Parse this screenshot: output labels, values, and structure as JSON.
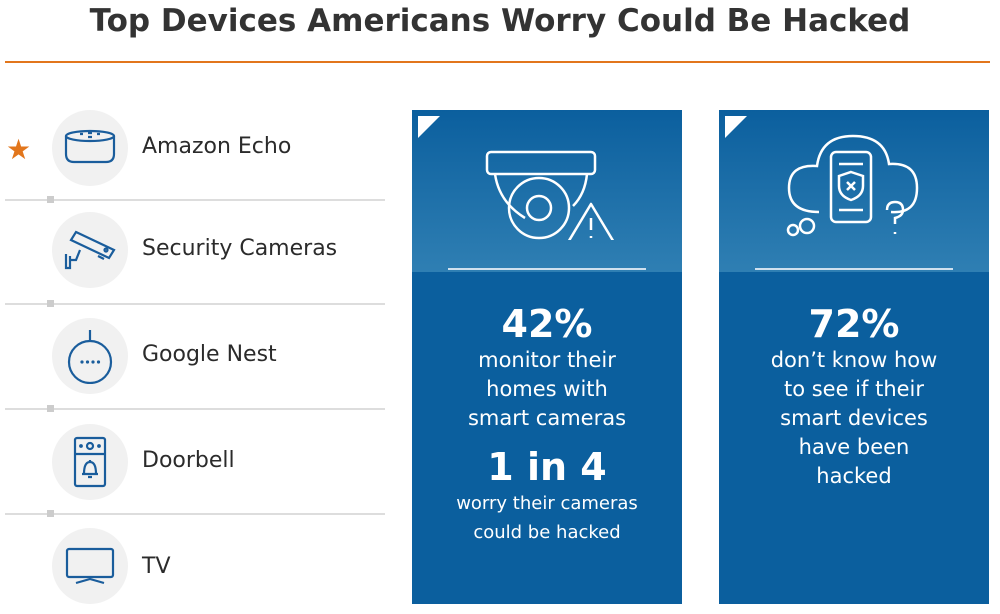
{
  "title": "Top Devices Americans Worry Could Be Hacked",
  "colors": {
    "accent": "#e2761c",
    "card": "#0b5f9e",
    "icon": "#1a5d9c"
  },
  "devices": [
    {
      "label": "Amazon Echo",
      "icon": "echo-speaker-icon",
      "starred": true
    },
    {
      "label": "Security Cameras",
      "icon": "security-camera-icon"
    },
    {
      "label": "Google Nest",
      "icon": "google-nest-icon"
    },
    {
      "label": "Doorbell",
      "icon": "doorbell-icon"
    },
    {
      "label": "TV",
      "icon": "tv-icon"
    }
  ],
  "cards": [
    {
      "icon": "dome-camera-warning-icon",
      "stat1": "42%",
      "text1": [
        "monitor their",
        "homes with",
        "smart cameras"
      ],
      "stat2": "1 in 4",
      "text2": [
        "worry their cameras",
        "could be hacked"
      ]
    },
    {
      "icon": "cloud-phone-shield-question-icon",
      "stat1": "72%",
      "text1": [
        "don’t know how",
        "to see if their",
        "smart devices",
        "have been",
        "hacked"
      ]
    }
  ]
}
